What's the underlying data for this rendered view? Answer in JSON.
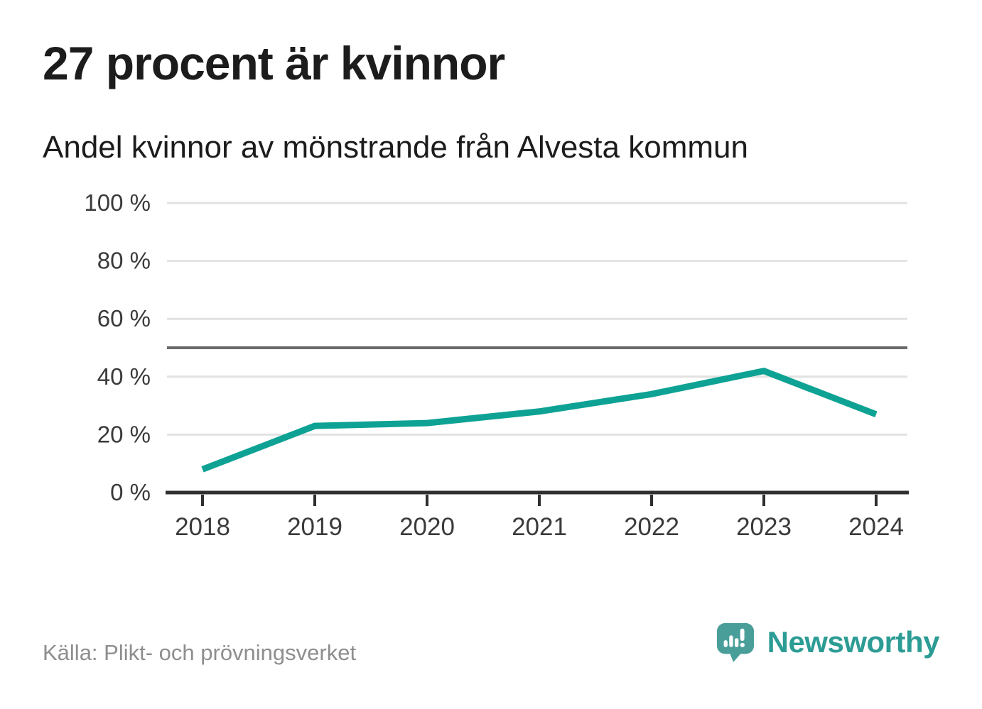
{
  "title": "27 procent är kvinnor",
  "subtitle": "Andel kvinnor av mönstrande från Alvesta kommun",
  "source_note": "Källa: Plikt- och prövningsverket",
  "brand": {
    "name": "Newsworthy",
    "logo_icon": "bar-chart-speech-bubble-icon"
  },
  "colors": {
    "line": "#0da294",
    "grid": "#e2e2e2",
    "reference": "#6a6a6a",
    "axis": "#2f2f2f",
    "tick_label": "#3a3a3a",
    "title_text": "#1c1c1c",
    "source_text": "#8e8e8e",
    "brand_teal": "#2c9c95",
    "brand_icon": "#4a9e99"
  },
  "chart_data": {
    "type": "line",
    "title": "27 procent är kvinnor",
    "subtitle": "Andel kvinnor av mönstrande från Alvesta kommun",
    "x": [
      "2018",
      "2019",
      "2020",
      "2021",
      "2022",
      "2023",
      "2024"
    ],
    "series": [
      {
        "name": "Andel kvinnor av mönstrande",
        "values": [
          8,
          23,
          24,
          28,
          34,
          42,
          27
        ]
      }
    ],
    "unit": "%",
    "ylim": [
      0,
      100
    ],
    "yticks": [
      0,
      20,
      40,
      60,
      80,
      100
    ],
    "ytick_suffix": " %",
    "reference_line": 50,
    "grid": "horizontal",
    "legend": "none"
  }
}
